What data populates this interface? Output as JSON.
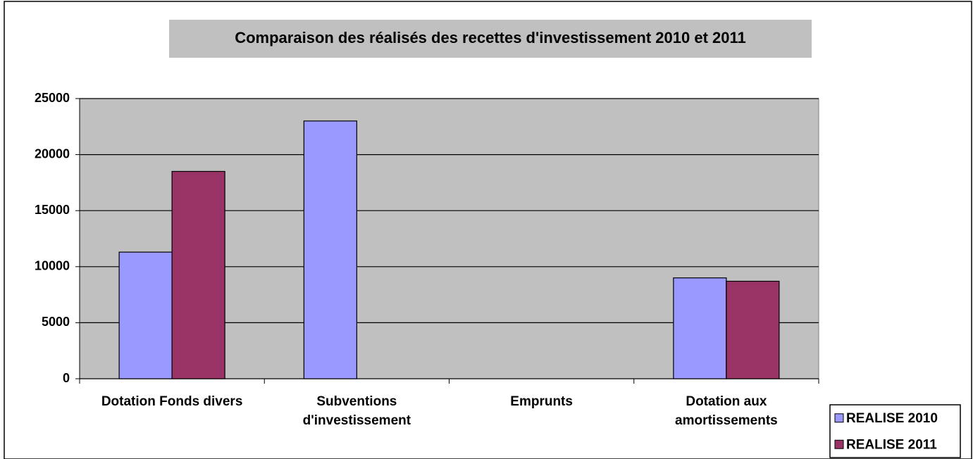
{
  "chart_data": {
    "type": "bar",
    "title": "Comparaison des réalisés des recettes d'investissement 2010 et 2011",
    "categories": [
      "Dotation Fonds divers",
      "Subventions d'investissement",
      "Emprunts",
      "Dotation aux amortissements"
    ],
    "series": [
      {
        "name": "REALISE 2010",
        "color": "#9999ff",
        "values": [
          11300,
          23000,
          0,
          9000
        ]
      },
      {
        "name": "REALISE 2011",
        "color": "#993366",
        "values": [
          18500,
          0,
          0,
          8700
        ]
      }
    ],
    "ylim": [
      0,
      25000
    ],
    "yticks": [
      0,
      5000,
      10000,
      15000,
      20000,
      25000
    ],
    "grid": true,
    "legend": "bottom-right"
  }
}
